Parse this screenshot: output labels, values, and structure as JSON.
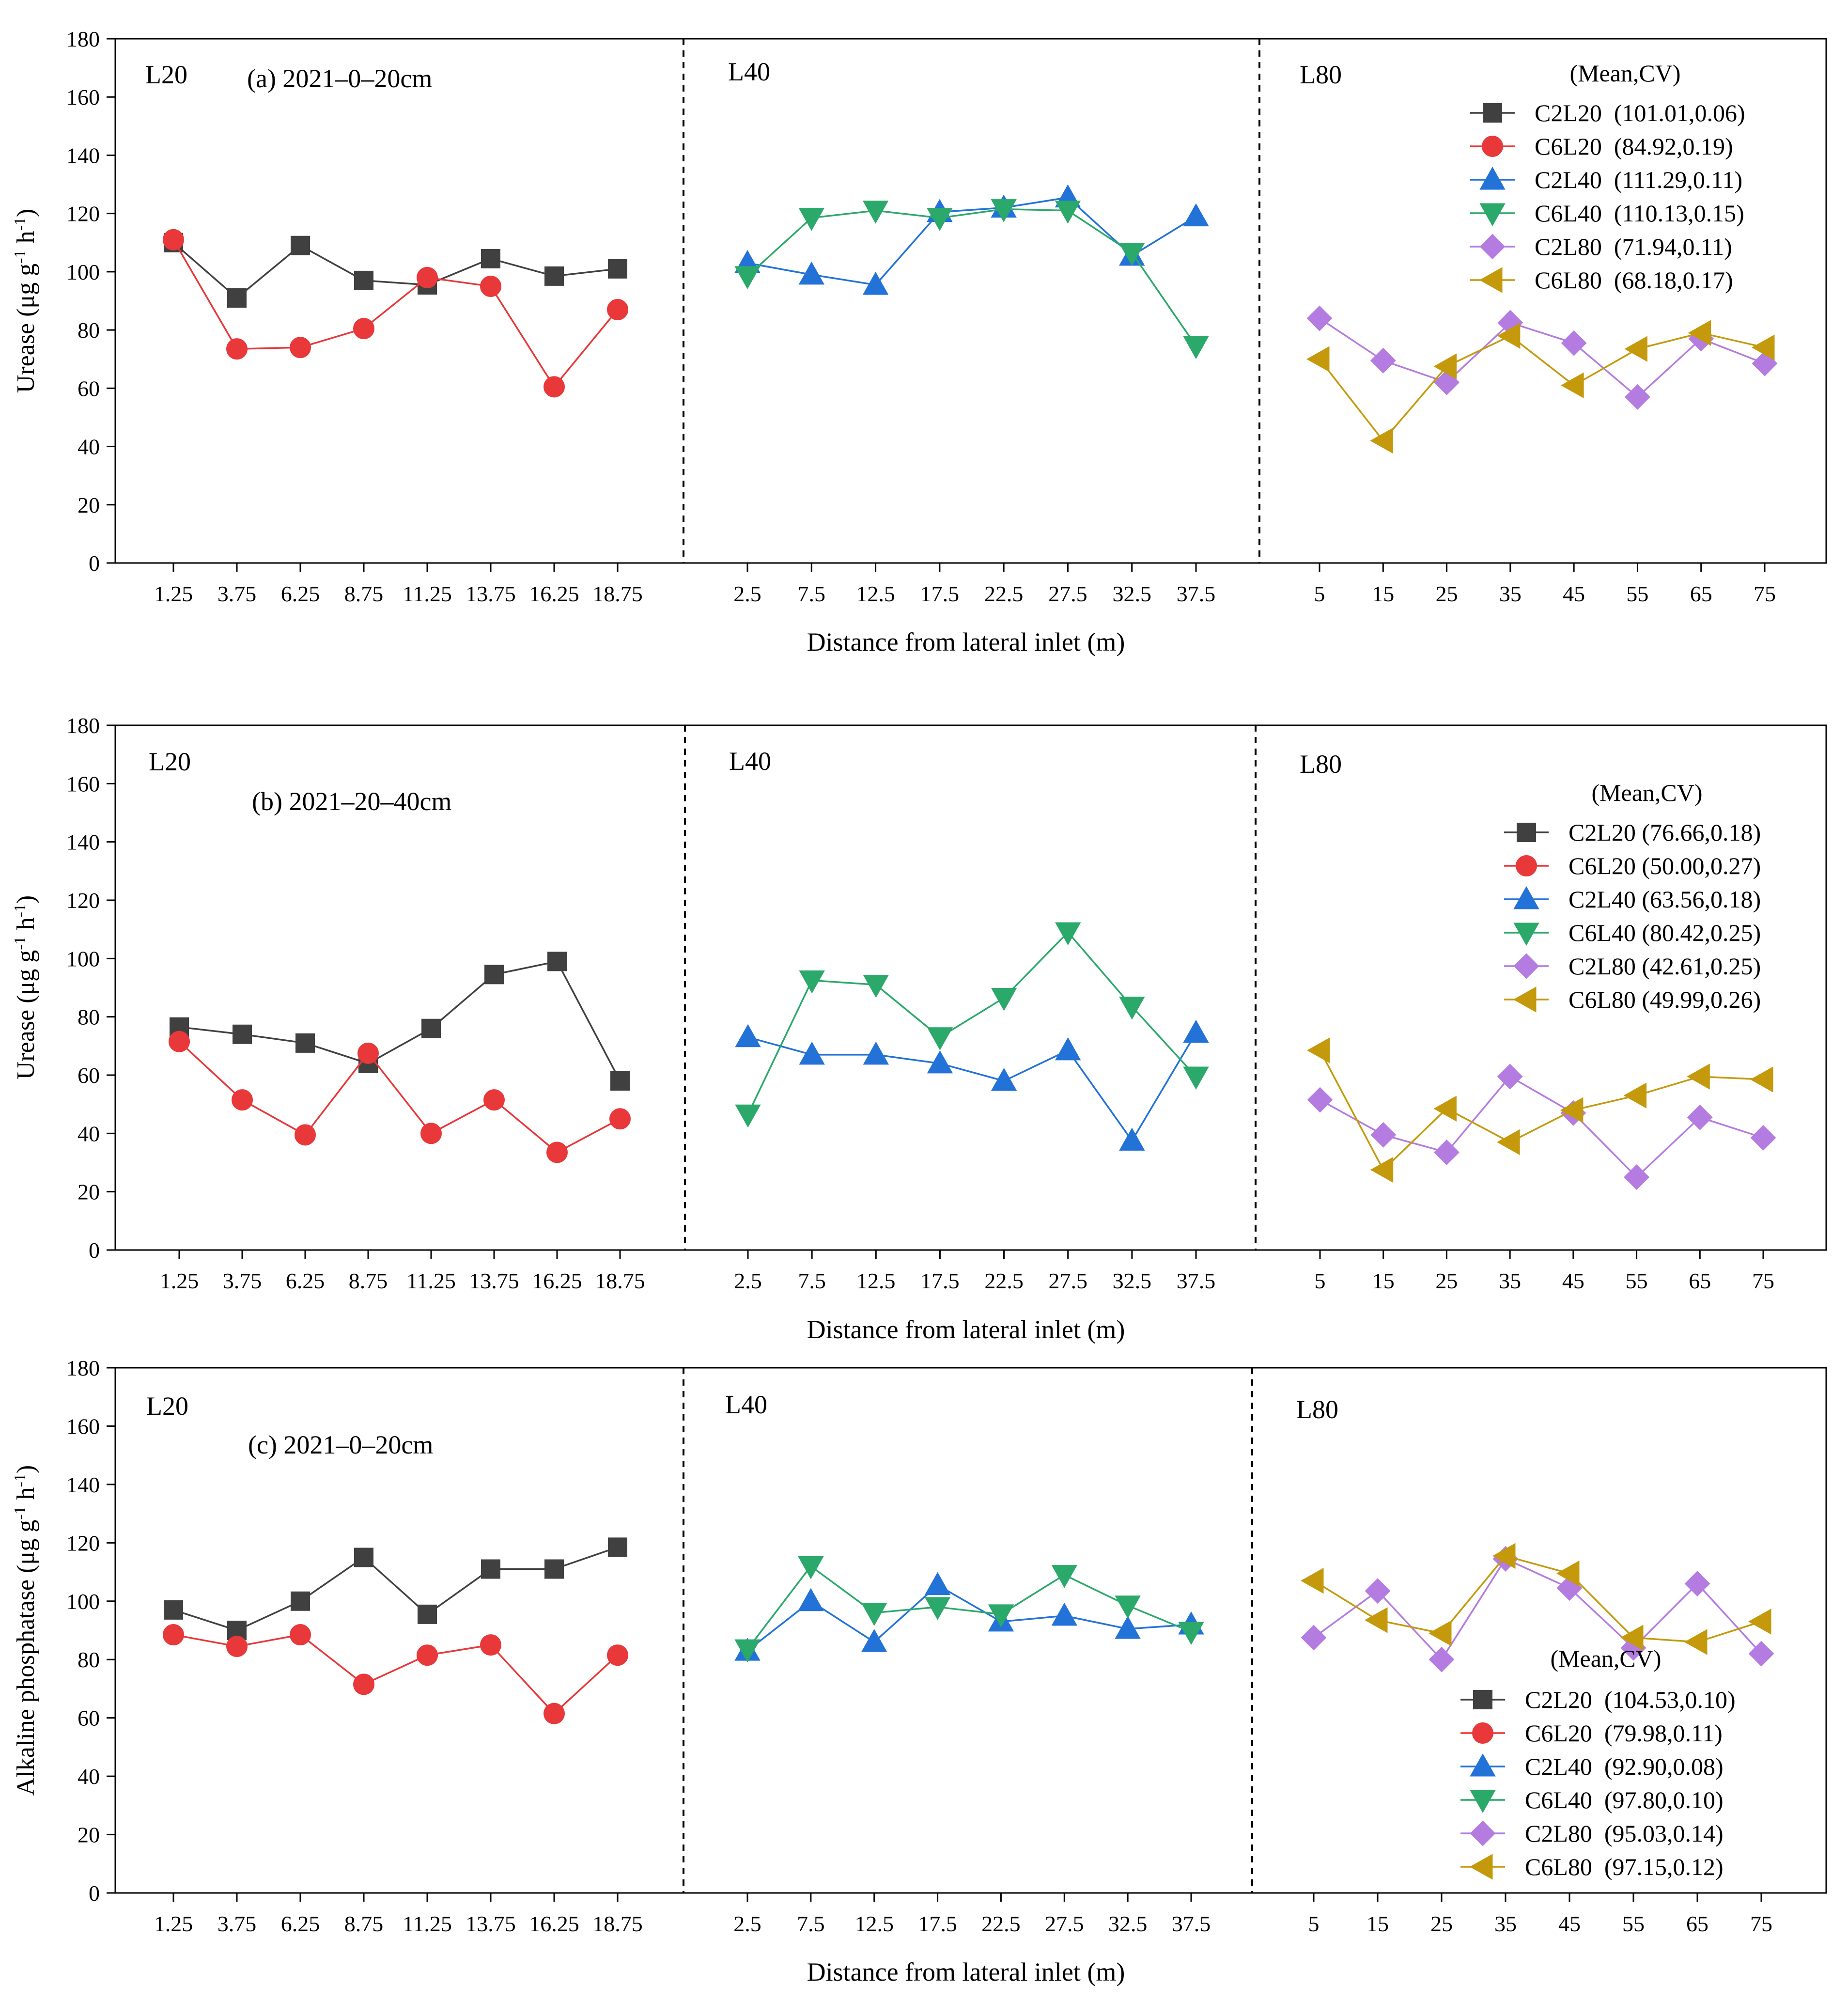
{
  "figure": {
    "common": {
      "xlabel": "Distance from lateral inlet (m)",
      "y_ticks": [
        "0",
        "20",
        "40",
        "60",
        "80",
        "100",
        "120",
        "140",
        "160",
        "180"
      ],
      "ylim": [
        0,
        180
      ],
      "groups": [
        {
          "name": "L20",
          "ticks": [
            "1.25",
            "3.75",
            "6.25",
            "8.75",
            "11.25",
            "13.75",
            "16.25",
            "18.75"
          ]
        },
        {
          "name": "L40",
          "ticks": [
            "2.5",
            "7.5",
            "12.5",
            "17.5",
            "22.5",
            "27.5",
            "32.5",
            "37.5"
          ]
        },
        {
          "name": "L80",
          "ticks": [
            "5",
            "15",
            "25",
            "35",
            "45",
            "55",
            "65",
            "75"
          ]
        }
      ]
    },
    "colors": {
      "C2L20": "#404040",
      "C6L20": "#e8383a",
      "C2L40": "#2272d8",
      "C6L40": "#2ba96a",
      "C2L80": "#b47be0",
      "C6L80": "#c49a0c"
    }
  },
  "chart_data": [
    {
      "type": "line",
      "title": "(a) 2021–0–20cm",
      "ylabel_base": "Urease (μg g",
      "ylabel_sup1": "-1",
      "ylabel_mid": " h",
      "ylabel_sup2": "-1",
      "ylabel_end": ")",
      "xlabel": "Distance from lateral inlet (m)",
      "ylim": [
        0,
        180
      ],
      "legend_header": "(Mean,CV)",
      "series": [
        {
          "name": "C2L20",
          "legend": "C2L20  (101.01,0.06)",
          "group": 0,
          "marker": "square",
          "values": [
            110,
            91,
            109,
            97,
            95.5,
            104.5,
            98.5,
            101
          ]
        },
        {
          "name": "C6L20",
          "legend": "C6L20  (84.92,0.19)",
          "group": 0,
          "marker": "circle",
          "values": [
            111,
            73.5,
            74,
            80.5,
            98,
            95,
            60.5,
            87
          ]
        },
        {
          "name": "C2L40",
          "legend": "C2L40  (111.29,0.11)",
          "group": 1,
          "marker": "triangle-up",
          "values": [
            103,
            99,
            95.5,
            120.5,
            122,
            125.5,
            105.5,
            119
          ]
        },
        {
          "name": "C6L40",
          "legend": "C6L40  (110.13,0.15)",
          "group": 1,
          "marker": "triangle-down",
          "values": [
            98.5,
            118.5,
            121,
            118.5,
            121.5,
            121,
            106.5,
            74.5
          ]
        },
        {
          "name": "C2L80",
          "legend": "C2L80  (71.94,0.11)",
          "group": 2,
          "marker": "diamond",
          "values": [
            84,
            69.5,
            62,
            82.5,
            75.5,
            57,
            77,
            68.5
          ]
        },
        {
          "name": "C6L80",
          "legend": "C6L80  (68.18,0.17)",
          "group": 2,
          "marker": "triangle-left",
          "values": [
            70,
            42,
            67.5,
            78,
            61,
            73.5,
            79,
            74
          ]
        }
      ]
    },
    {
      "type": "line",
      "title": "(b) 2021–20–40cm",
      "ylabel_base": "Urease (μg g",
      "ylabel_sup1": "-1",
      "ylabel_mid": " h",
      "ylabel_sup2": "-1",
      "ylabel_end": ")",
      "xlabel": "Distance from lateral inlet (m)",
      "ylim": [
        0,
        180
      ],
      "legend_header": "(Mean,CV)",
      "series": [
        {
          "name": "C2L20",
          "legend": "C2L20 (76.66,0.18)",
          "group": 0,
          "marker": "square",
          "values": [
            76.5,
            74,
            71,
            64,
            76,
            94.5,
            99,
            58
          ]
        },
        {
          "name": "C6L20",
          "legend": "C6L20 (50.00,0.27)",
          "group": 0,
          "marker": "circle",
          "values": [
            71.5,
            51.5,
            39.5,
            67.5,
            40,
            51.5,
            33.5,
            45
          ]
        },
        {
          "name": "C2L40",
          "legend": "C2L40 (63.56,0.18)",
          "group": 1,
          "marker": "triangle-up",
          "values": [
            73,
            67,
            67,
            64,
            58,
            68.5,
            37.5,
            74.5
          ]
        },
        {
          "name": "C6L40",
          "legend": "C6L40 (80.42,0.25)",
          "group": 1,
          "marker": "triangle-down",
          "values": [
            46.5,
            92.5,
            91,
            73,
            86.5,
            109,
            83.5,
            59.5
          ]
        },
        {
          "name": "C2L80",
          "legend": "C2L80 (42.61,0.25)",
          "group": 2,
          "marker": "diamond",
          "values": [
            51.5,
            39.5,
            33.5,
            59.5,
            47,
            25,
            45.5,
            38.5
          ]
        },
        {
          "name": "C6L80",
          "legend": "C6L80 (49.99,0.26)",
          "group": 2,
          "marker": "triangle-left",
          "values": [
            68.5,
            27.5,
            48.5,
            37,
            48,
            53,
            59.5,
            58.5
          ]
        }
      ]
    },
    {
      "type": "line",
      "title": "(c) 2021–0–20cm",
      "ylabel_base": "Alkaline phosphatase (μg g",
      "ylabel_sup1": "-1",
      "ylabel_mid": " h",
      "ylabel_sup2": "-1",
      "ylabel_end": ")",
      "xlabel": "Distance from lateral inlet (m)",
      "ylim": [
        0,
        180
      ],
      "legend_header": "(Mean,CV)",
      "series": [
        {
          "name": "C2L20",
          "legend": "C2L20  (104.53,0.10)",
          "group": 0,
          "marker": "square",
          "values": [
            97,
            90,
            100,
            115,
            95.5,
            111,
            111,
            118.5
          ]
        },
        {
          "name": "C6L20",
          "legend": "C6L20  (79.98,0.11)",
          "group": 0,
          "marker": "circle",
          "values": [
            88.5,
            84.5,
            88.5,
            71.5,
            81.5,
            85,
            61.5,
            81.5
          ]
        },
        {
          "name": "C2L40",
          "legend": "C2L40  (92.90,0.08)",
          "group": 1,
          "marker": "triangle-up",
          "values": [
            83,
            100,
            86,
            105.5,
            93,
            95,
            90.5,
            92
          ]
        },
        {
          "name": "C6L40",
          "legend": "C6L40  (97.80,0.10)",
          "group": 1,
          "marker": "triangle-down",
          "values": [
            83.5,
            112,
            96,
            98,
            95.5,
            109,
            98.5,
            89.5
          ]
        },
        {
          "name": "C2L80",
          "legend": "C2L80  (95.03,0.14)",
          "group": 2,
          "marker": "diamond",
          "values": [
            87.5,
            103.5,
            80,
            114.5,
            104.5,
            84,
            106,
            82
          ]
        },
        {
          "name": "C6L80",
          "legend": "C6L80  (97.15,0.12)",
          "group": 2,
          "marker": "triangle-left",
          "values": [
            107,
            93.5,
            89,
            115.5,
            109.5,
            87.5,
            86,
            93
          ]
        }
      ]
    }
  ]
}
